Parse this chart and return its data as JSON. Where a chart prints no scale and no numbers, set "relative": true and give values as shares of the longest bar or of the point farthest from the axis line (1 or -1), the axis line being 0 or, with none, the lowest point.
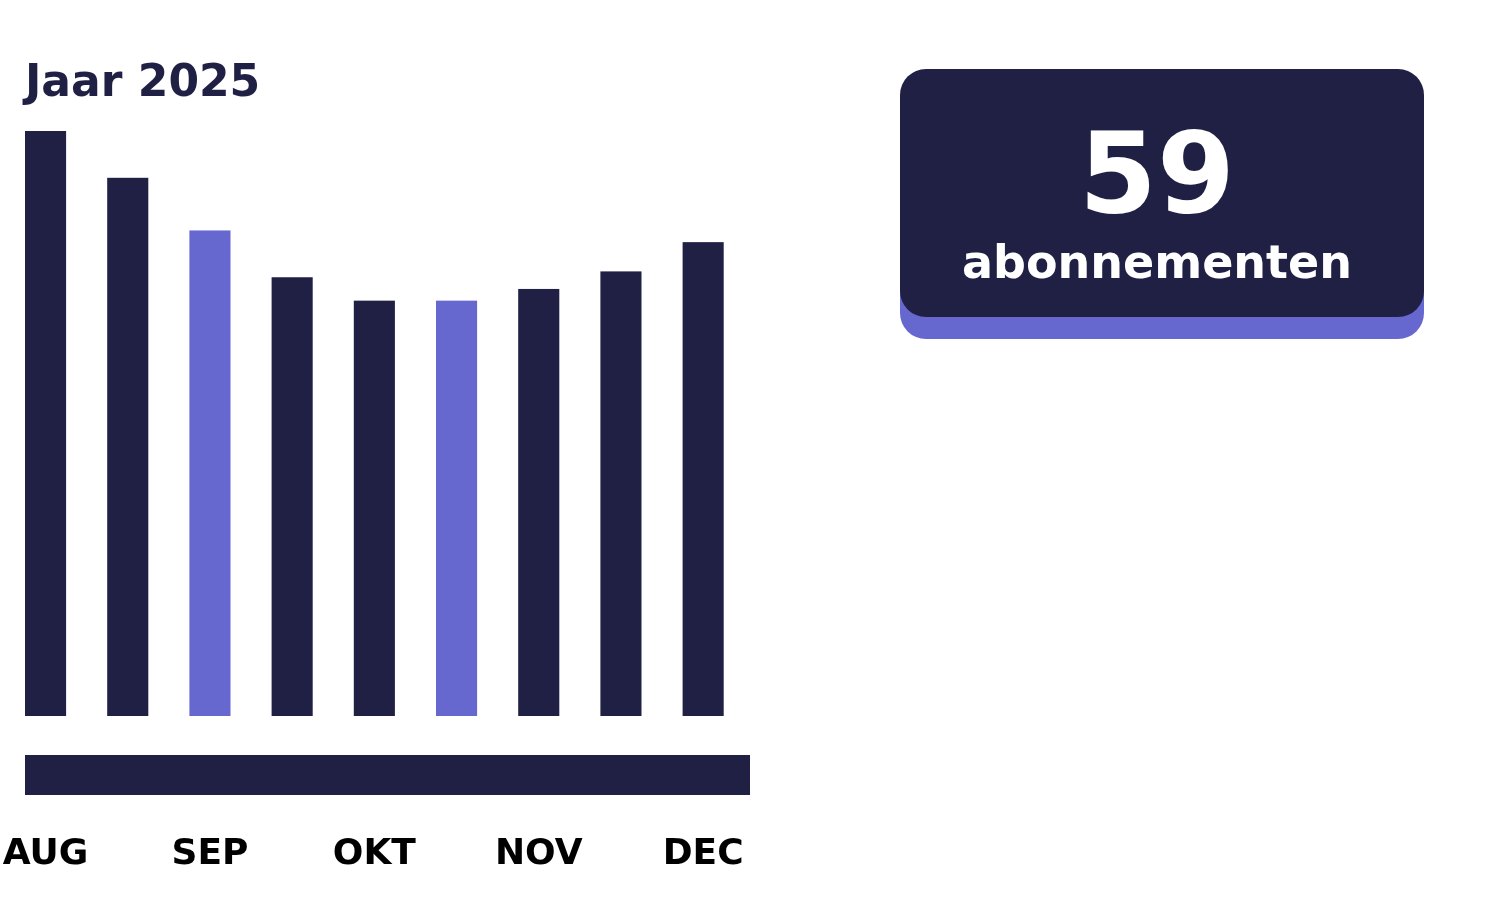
{
  "chart_data": [
    {
      "type": "bar",
      "title": "Jaar 2025",
      "relative": true,
      "categories": [
        "AUG",
        null,
        "SEP",
        null,
        "OKT",
        null,
        "NOV",
        null,
        "DEC"
      ],
      "values": [
        1,
        0.92,
        0.83,
        0.75,
        0.71,
        0.71,
        0.73,
        0.76,
        0.81
      ],
      "colors": [
        "#1f2044",
        "#1f2044",
        "#6668d0",
        "#1f2044",
        "#1f2044",
        "#6668d0",
        "#1f2044",
        "#1f2044",
        "#1f2044"
      ]
    },
    {
      "type": "other",
      "annotations": [
        "59",
        "abonnementen"
      ]
    }
  ]
}
